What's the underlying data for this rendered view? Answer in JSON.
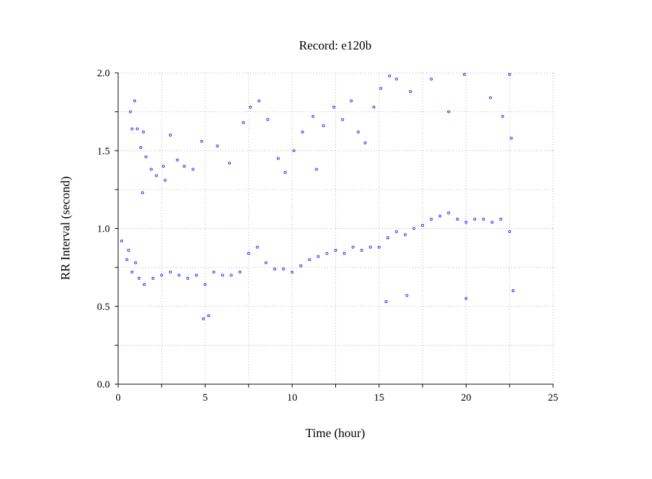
{
  "chart_data": {
    "type": "scatter",
    "title": "Record:  e120b",
    "xlabel": "Time (hour)",
    "ylabel": "RR Interval (second)",
    "xlim": [
      0,
      25
    ],
    "ylim": [
      0,
      2.0
    ],
    "x_ticks": [
      "0",
      "5",
      "10",
      "15",
      "20",
      "25"
    ],
    "y_ticks": [
      "0.0",
      "0.5",
      "1.0",
      "1.5",
      "2.0"
    ],
    "grid": true,
    "marker_color": "#1a1aff",
    "series": [
      {
        "values": [
          {
            "x": 0.2,
            "y": 0.92
          },
          {
            "x": 0.5,
            "y": 0.8
          },
          {
            "x": 0.6,
            "y": 0.86
          },
          {
            "x": 0.8,
            "y": 0.72
          },
          {
            "x": 1.0,
            "y": 0.78
          },
          {
            "x": 1.2,
            "y": 0.68
          },
          {
            "x": 1.5,
            "y": 0.64
          },
          {
            "x": 2.0,
            "y": 0.68
          },
          {
            "x": 2.5,
            "y": 0.7
          },
          {
            "x": 3.0,
            "y": 0.72
          },
          {
            "x": 3.5,
            "y": 0.7
          },
          {
            "x": 4.0,
            "y": 0.68
          },
          {
            "x": 4.5,
            "y": 0.7
          },
          {
            "x": 5.0,
            "y": 0.64
          },
          {
            "x": 5.5,
            "y": 0.72
          },
          {
            "x": 6.0,
            "y": 0.7
          },
          {
            "x": 6.5,
            "y": 0.7
          },
          {
            "x": 7.0,
            "y": 0.72
          },
          {
            "x": 7.5,
            "y": 0.84
          },
          {
            "x": 8.0,
            "y": 0.88
          },
          {
            "x": 8.5,
            "y": 0.78
          },
          {
            "x": 9.0,
            "y": 0.74
          },
          {
            "x": 9.5,
            "y": 0.74
          },
          {
            "x": 10.0,
            "y": 0.72
          },
          {
            "x": 10.5,
            "y": 0.76
          },
          {
            "x": 11.0,
            "y": 0.8
          },
          {
            "x": 11.5,
            "y": 0.82
          },
          {
            "x": 12.0,
            "y": 0.84
          },
          {
            "x": 12.5,
            "y": 0.86
          },
          {
            "x": 13.0,
            "y": 0.84
          },
          {
            "x": 13.5,
            "y": 0.88
          },
          {
            "x": 14.0,
            "y": 0.86
          },
          {
            "x": 14.5,
            "y": 0.88
          },
          {
            "x": 15.0,
            "y": 0.88
          },
          {
            "x": 15.5,
            "y": 0.94
          },
          {
            "x": 16.0,
            "y": 0.98
          },
          {
            "x": 16.5,
            "y": 0.96
          },
          {
            "x": 17.0,
            "y": 1.0
          },
          {
            "x": 17.5,
            "y": 1.02
          },
          {
            "x": 18.0,
            "y": 1.06
          },
          {
            "x": 18.5,
            "y": 1.08
          },
          {
            "x": 19.0,
            "y": 1.1
          },
          {
            "x": 19.5,
            "y": 1.06
          },
          {
            "x": 20.0,
            "y": 1.04
          },
          {
            "x": 20.5,
            "y": 1.06
          },
          {
            "x": 21.0,
            "y": 1.06
          },
          {
            "x": 21.5,
            "y": 1.04
          },
          {
            "x": 22.0,
            "y": 1.06
          },
          {
            "x": 22.5,
            "y": 0.98
          },
          {
            "x": 0.7,
            "y": 1.75
          },
          {
            "x": 0.8,
            "y": 1.64
          },
          {
            "x": 0.95,
            "y": 1.82
          },
          {
            "x": 1.1,
            "y": 1.64
          },
          {
            "x": 1.3,
            "y": 1.52
          },
          {
            "x": 1.45,
            "y": 1.62
          },
          {
            "x": 1.6,
            "y": 1.46
          },
          {
            "x": 1.9,
            "y": 1.38
          },
          {
            "x": 2.2,
            "y": 1.34
          },
          {
            "x": 2.6,
            "y": 1.4
          },
          {
            "x": 3.0,
            "y": 1.6
          },
          {
            "x": 3.4,
            "y": 1.44
          },
          {
            "x": 3.8,
            "y": 1.4
          },
          {
            "x": 4.3,
            "y": 1.38
          },
          {
            "x": 4.8,
            "y": 1.56
          },
          {
            "x": 5.7,
            "y": 1.53
          },
          {
            "x": 6.4,
            "y": 1.42
          },
          {
            "x": 7.2,
            "y": 1.68
          },
          {
            "x": 7.6,
            "y": 1.78
          },
          {
            "x": 8.1,
            "y": 1.82
          },
          {
            "x": 8.6,
            "y": 1.7
          },
          {
            "x": 9.2,
            "y": 1.45
          },
          {
            "x": 9.6,
            "y": 1.36
          },
          {
            "x": 10.1,
            "y": 1.5
          },
          {
            "x": 10.6,
            "y": 1.62
          },
          {
            "x": 11.2,
            "y": 1.72
          },
          {
            "x": 11.8,
            "y": 1.66
          },
          {
            "x": 12.4,
            "y": 1.78
          },
          {
            "x": 12.9,
            "y": 1.7
          },
          {
            "x": 13.4,
            "y": 1.82
          },
          {
            "x": 13.8,
            "y": 1.62
          },
          {
            "x": 14.2,
            "y": 1.55
          },
          {
            "x": 14.7,
            "y": 1.78
          },
          {
            "x": 15.1,
            "y": 1.9
          },
          {
            "x": 15.6,
            "y": 1.98
          },
          {
            "x": 16.0,
            "y": 1.96
          },
          {
            "x": 16.8,
            "y": 1.88
          },
          {
            "x": 18.0,
            "y": 1.96
          },
          {
            "x": 19.0,
            "y": 1.75
          },
          {
            "x": 19.9,
            "y": 1.99
          },
          {
            "x": 21.4,
            "y": 1.84
          },
          {
            "x": 22.1,
            "y": 1.72
          },
          {
            "x": 22.5,
            "y": 1.99
          },
          {
            "x": 22.6,
            "y": 1.58
          },
          {
            "x": 1.4,
            "y": 1.23
          },
          {
            "x": 2.7,
            "y": 1.31
          },
          {
            "x": 11.4,
            "y": 1.38
          },
          {
            "x": 4.9,
            "y": 0.42
          },
          {
            "x": 5.2,
            "y": 0.44
          },
          {
            "x": 15.4,
            "y": 0.53
          },
          {
            "x": 16.6,
            "y": 0.57
          },
          {
            "x": 20.0,
            "y": 0.55
          },
          {
            "x": 22.7,
            "y": 0.6
          }
        ]
      }
    ]
  }
}
